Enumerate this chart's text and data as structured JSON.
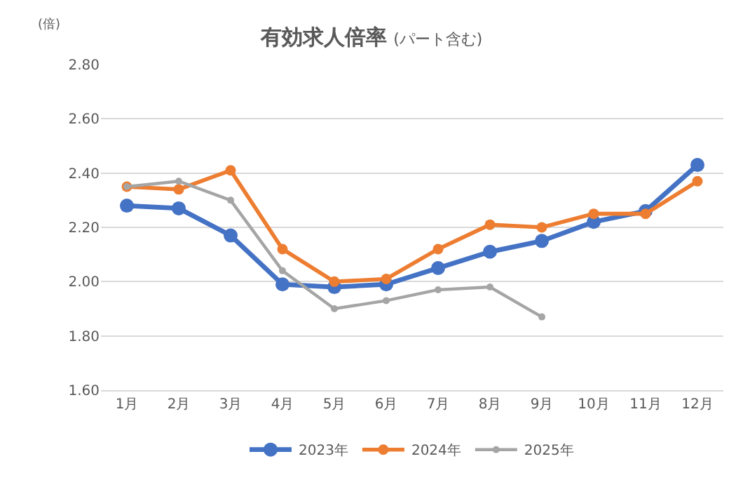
{
  "chart_data": {
    "type": "line",
    "title": "有効求人倍率",
    "subtitle": "(パート含む)",
    "ylabel": "(倍)",
    "categories": [
      "1月",
      "2月",
      "3月",
      "4月",
      "5月",
      "6月",
      "7月",
      "8月",
      "9月",
      "10月",
      "11月",
      "12月"
    ],
    "series": [
      {
        "name": "2023年",
        "color": "#4472c4",
        "values": [
          2.28,
          2.27,
          2.17,
          1.99,
          1.98,
          1.99,
          2.05,
          2.11,
          2.15,
          2.22,
          2.26,
          2.43
        ]
      },
      {
        "name": "2024年",
        "color": "#ed7d31",
        "values": [
          2.35,
          2.34,
          2.41,
          2.12,
          2.0,
          2.01,
          2.12,
          2.21,
          2.2,
          2.25,
          2.25,
          2.37
        ]
      },
      {
        "name": "2025年",
        "color": "#a5a5a5",
        "values": [
          2.35,
          2.37,
          2.3,
          2.04,
          1.9,
          1.93,
          1.97,
          1.98,
          1.87,
          null,
          null,
          null
        ]
      }
    ],
    "ylim": [
      1.6,
      2.8
    ],
    "yticks": [
      {
        "value": 1.6,
        "label": "1.60"
      },
      {
        "value": 1.8,
        "label": "1.80"
      },
      {
        "value": 2.0,
        "label": "2.00"
      },
      {
        "value": 2.2,
        "label": "2.20"
      },
      {
        "value": 2.4,
        "label": "2.40"
      },
      {
        "value": 2.6,
        "label": "2.60"
      },
      {
        "value": 2.8,
        "label": "2.80"
      }
    ],
    "grid": "y",
    "legend": "bottom",
    "marker": "circle",
    "line_style": "solid"
  }
}
